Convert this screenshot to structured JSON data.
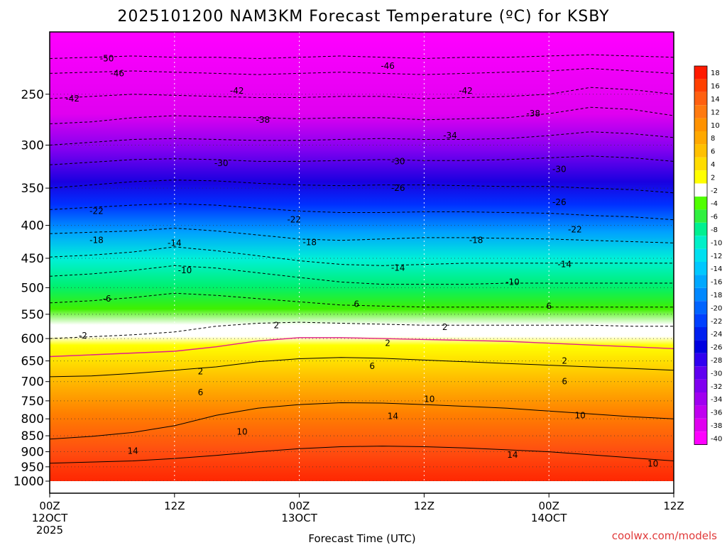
{
  "chart_data": {
    "type": "heatmap",
    "title": "2025101200 NAM3KM Forecast Temperature (ºC) for KSBY",
    "xlabel": "Forecast Time (UTC)",
    "ylabel": "",
    "credit": "coolwx.com/models",
    "x_range_hours": [
      0,
      60
    ],
    "y_range_hpa": [
      1000,
      200
    ],
    "x_ticks": [
      {
        "hour": 0,
        "lines": [
          "00Z",
          "12OCT",
          "2025"
        ]
      },
      {
        "hour": 12,
        "lines": [
          "12Z"
        ]
      },
      {
        "hour": 24,
        "lines": [
          "00Z",
          "13OCT"
        ]
      },
      {
        "hour": 36,
        "lines": [
          "12Z"
        ]
      },
      {
        "hour": 48,
        "lines": [
          "00Z",
          "14OCT"
        ]
      },
      {
        "hour": 60,
        "lines": [
          "12Z"
        ]
      }
    ],
    "y_ticks": [
      250,
      300,
      350,
      400,
      450,
      500,
      550,
      600,
      650,
      700,
      750,
      800,
      850,
      900,
      950,
      1000
    ],
    "colorbar": {
      "labels": [
        "18",
        "16",
        "14",
        "12",
        "10",
        "8",
        "6",
        "4",
        "2",
        "-2",
        "-4",
        "-6",
        "-8",
        "-10",
        "-12",
        "-14",
        "-16",
        "-18",
        "-20",
        "-22",
        "-24",
        "-26",
        "-28",
        "-30",
        "-32",
        "-34",
        "-36",
        "-38",
        "-40"
      ],
      "colors": [
        "#ff1a00",
        "#ff4000",
        "#ff6010",
        "#ff7a10",
        "#ff9200",
        "#ffa800",
        "#ffc000",
        "#ffdc00",
        "#ffff00",
        "#ffffff",
        "#50ff00",
        "#30f040",
        "#00f090",
        "#00f0c8",
        "#00e0f0",
        "#00c8ff",
        "#00a8ff",
        "#0088ff",
        "#0064ff",
        "#0040ff",
        "#0020f0",
        "#0000e0",
        "#3000f0",
        "#6000f0",
        "#8000f0",
        "#a000f0",
        "#c000f0",
        "#e000f0",
        "#ff00ff"
      ]
    },
    "isotherms": [
      {
        "value": -50,
        "p": [
          220,
          219,
          218,
          219,
          219,
          220,
          219,
          218,
          219,
          220,
          219,
          219,
          218,
          217,
          218,
          219
        ]
      },
      {
        "value": -46,
        "p": [
          232,
          231,
          230,
          231,
          232,
          233,
          232,
          231,
          232,
          233,
          232,
          231,
          230,
          228,
          230,
          232
        ]
      },
      {
        "value": -42,
        "p": [
          254,
          252,
          250,
          251,
          252,
          253,
          253,
          252,
          252,
          254,
          253,
          252,
          250,
          244,
          246,
          250
        ]
      },
      {
        "value": -38,
        "p": [
          278,
          276,
          272,
          270,
          271,
          272,
          273,
          272,
          272,
          274,
          273,
          272,
          268,
          262,
          264,
          270
        ]
      },
      {
        "value": -34,
        "p": [
          300,
          297,
          294,
          293,
          294,
          295,
          295,
          294,
          293,
          294,
          294,
          293,
          290,
          286,
          288,
          292
        ]
      },
      {
        "value": -30,
        "p": [
          322,
          319,
          316,
          315,
          316,
          318,
          318,
          317,
          316,
          317,
          317,
          316,
          314,
          312,
          314,
          318
        ]
      },
      {
        "value": -26,
        "p": [
          350,
          346,
          342,
          340,
          341,
          344,
          346,
          347,
          346,
          346,
          347,
          348,
          348,
          350,
          352,
          356
        ]
      },
      {
        "value": -22,
        "p": [
          378,
          375,
          372,
          370,
          372,
          376,
          380,
          382,
          382,
          381,
          381,
          382,
          383,
          386,
          388,
          392
        ]
      },
      {
        "value": -18,
        "p": [
          412,
          410,
          408,
          404,
          408,
          414,
          420,
          422,
          420,
          418,
          418,
          419,
          420,
          422,
          424,
          426
        ]
      },
      {
        "value": -14,
        "p": [
          448,
          445,
          440,
          432,
          438,
          446,
          454,
          460,
          462,
          460,
          458,
          458,
          458,
          458,
          458,
          458
        ]
      },
      {
        "value": -10,
        "p": [
          480,
          476,
          470,
          462,
          466,
          474,
          482,
          490,
          494,
          494,
          494,
          492,
          492,
          492,
          492,
          492
        ]
      },
      {
        "value": -6,
        "p": [
          528,
          524,
          518,
          510,
          514,
          520,
          526,
          532,
          534,
          536,
          536,
          536,
          536,
          536,
          536,
          536
        ]
      },
      {
        "value": -2,
        "p": [
          600,
          596,
          592,
          586,
          574,
          568,
          566,
          568,
          570,
          572,
          572,
          572,
          572,
          572,
          574,
          574
        ]
      },
      {
        "value": 2,
        "p": [
          640,
          636,
          632,
          628,
          618,
          605,
          598,
          598,
          600,
          602,
          604,
          606,
          610,
          614,
          618,
          622
        ]
      },
      {
        "value": 6,
        "p": [
          688,
          686,
          680,
          672,
          664,
          652,
          645,
          642,
          644,
          648,
          652,
          656,
          660,
          664,
          668,
          672
        ]
      },
      {
        "value": 10,
        "p": [
          860,
          852,
          840,
          820,
          790,
          770,
          760,
          755,
          756,
          760,
          765,
          770,
          778,
          786,
          794,
          800
        ]
      },
      {
        "value": 14,
        "p": [
          938,
          934,
          930,
          922,
          912,
          900,
          890,
          884,
          882,
          884,
          888,
          894,
          900,
          910,
          920,
          930
        ]
      }
    ],
    "contour_labels": [
      {
        "text": "-50",
        "hour": 5.5,
        "p": 220
      },
      {
        "text": "-46",
        "hour": 6.5,
        "p": 232
      },
      {
        "text": "-46",
        "hour": 32.5,
        "p": 226
      },
      {
        "text": "-42",
        "hour": 2.2,
        "p": 254
      },
      {
        "text": "-42",
        "hour": 18.0,
        "p": 247
      },
      {
        "text": "-42",
        "hour": 40.0,
        "p": 247
      },
      {
        "text": "-38",
        "hour": 20.5,
        "p": 274
      },
      {
        "text": "-38",
        "hour": 46.5,
        "p": 268
      },
      {
        "text": "-34",
        "hour": 38.5,
        "p": 290
      },
      {
        "text": "-30",
        "hour": 16.5,
        "p": 320
      },
      {
        "text": "-30",
        "hour": 33.5,
        "p": 318
      },
      {
        "text": "-30",
        "hour": 49.0,
        "p": 327
      },
      {
        "text": "-26",
        "hour": 33.5,
        "p": 350
      },
      {
        "text": "-26",
        "hour": 49.0,
        "p": 368
      },
      {
        "text": "-22",
        "hour": 4.5,
        "p": 380
      },
      {
        "text": "-22",
        "hour": 23.5,
        "p": 392
      },
      {
        "text": "-22",
        "hour": 50.5,
        "p": 406
      },
      {
        "text": "-18",
        "hour": 4.5,
        "p": 422
      },
      {
        "text": "-18",
        "hour": 25.0,
        "p": 425
      },
      {
        "text": "-18",
        "hour": 41.0,
        "p": 422
      },
      {
        "text": "-14",
        "hour": 12.0,
        "p": 426
      },
      {
        "text": "-14",
        "hour": 33.5,
        "p": 466
      },
      {
        "text": "-14",
        "hour": 49.5,
        "p": 460
      },
      {
        "text": "-10",
        "hour": 13.0,
        "p": 470
      },
      {
        "text": "-10",
        "hour": 44.5,
        "p": 490
      },
      {
        "text": "-6",
        "hour": 5.5,
        "p": 520
      },
      {
        "text": "6",
        "hour": 29.5,
        "p": 530
      },
      {
        "text": "6",
        "hour": 48.0,
        "p": 534
      },
      {
        "text": "-2",
        "hour": 3.2,
        "p": 594
      },
      {
        "text": "2",
        "hour": 21.8,
        "p": 572
      },
      {
        "text": "2",
        "hour": 38.0,
        "p": 576
      },
      {
        "text": "2",
        "hour": 32.5,
        "p": 610
      },
      {
        "text": "2",
        "hour": 14.5,
        "p": 675
      },
      {
        "text": "2",
        "hour": 49.5,
        "p": 650
      },
      {
        "text": "6",
        "hour": 31.0,
        "p": 662
      },
      {
        "text": "6",
        "hour": 14.5,
        "p": 728
      },
      {
        "text": "6",
        "hour": 49.5,
        "p": 700
      },
      {
        "text": "10",
        "hour": 36.5,
        "p": 746
      },
      {
        "text": "10",
        "hour": 51.0,
        "p": 790
      },
      {
        "text": "10",
        "hour": 18.5,
        "p": 838
      },
      {
        "text": "10",
        "hour": 58.0,
        "p": 940
      },
      {
        "text": "14",
        "hour": 33.0,
        "p": 792
      },
      {
        "text": "14",
        "hour": 8.0,
        "p": 898
      },
      {
        "text": "14",
        "hour": 44.5,
        "p": 910
      }
    ]
  }
}
